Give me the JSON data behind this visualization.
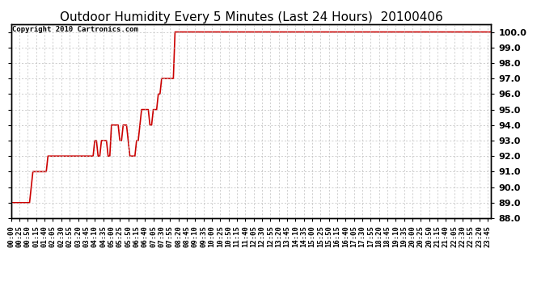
{
  "title": "Outdoor Humidity Every 5 Minutes (Last 24 Hours)  20100406",
  "copyright_text": "Copyright 2010 Cartronics.com",
  "line_color": "#cc0000",
  "background_color": "#ffffff",
  "plot_background_color": "#ffffff",
  "ylim": [
    88.0,
    100.5
  ],
  "yticks": [
    88.0,
    89.0,
    90.0,
    91.0,
    92.0,
    93.0,
    94.0,
    95.0,
    96.0,
    97.0,
    98.0,
    99.0,
    100.0
  ],
  "grid_color": "#bbbbbb",
  "grid_style": "--",
  "title_fontsize": 11,
  "copyright_fontsize": 6.5,
  "tick_fontsize": 6.5,
  "ytick_fontsize": 8,
  "humidity_data": [
    89.0,
    89.0,
    89.0,
    89.0,
    89.0,
    89.0,
    89.0,
    89.0,
    89.0,
    89.0,
    89.0,
    89.0,
    90.0,
    91.0,
    91.0,
    91.0,
    91.0,
    91.0,
    91.0,
    91.0,
    91.0,
    91.0,
    92.0,
    92.0,
    92.0,
    92.0,
    92.0,
    92.0,
    92.0,
    92.0,
    92.0,
    92.0,
    92.0,
    92.0,
    92.0,
    92.0,
    92.0,
    92.0,
    92.0,
    92.0,
    92.0,
    92.0,
    92.0,
    92.0,
    92.0,
    92.0,
    92.0,
    92.0,
    92.0,
    92.0,
    93.0,
    93.0,
    92.0,
    92.0,
    93.0,
    93.0,
    93.0,
    93.0,
    92.0,
    92.0,
    94.0,
    94.0,
    94.0,
    94.0,
    94.0,
    93.0,
    93.0,
    94.0,
    94.0,
    94.0,
    93.0,
    92.0,
    92.0,
    92.0,
    92.0,
    93.0,
    93.0,
    94.0,
    95.0,
    95.0,
    95.0,
    95.0,
    95.0,
    94.0,
    94.0,
    95.0,
    95.0,
    95.0,
    96.0,
    96.0,
    97.0,
    97.0,
    97.0,
    97.0,
    97.0,
    97.0,
    97.0,
    97.0,
    100.0,
    100.0,
    100.0,
    100.0,
    100.0,
    100.0,
    100.0,
    100.0,
    100.0,
    100.0,
    100.0,
    100.0,
    100.0,
    100.0,
    100.0,
    100.0,
    100.0,
    100.0,
    100.0,
    100.0,
    100.0,
    100.0,
    100.0,
    100.0,
    100.0,
    100.0,
    100.0,
    100.0,
    100.0,
    100.0,
    100.0,
    100.0,
    100.0,
    100.0,
    100.0,
    100.0,
    100.0,
    100.0,
    100.0,
    100.0,
    100.0,
    100.0,
    100.0,
    100.0,
    100.0,
    100.0,
    100.0,
    100.0,
    100.0,
    100.0,
    100.0,
    100.0,
    100.0,
    100.0,
    100.0,
    100.0,
    100.0,
    100.0,
    100.0,
    100.0,
    100.0,
    100.0,
    100.0,
    100.0,
    100.0,
    100.0,
    100.0,
    100.0,
    100.0,
    100.0,
    100.0,
    100.0,
    100.0,
    100.0,
    100.0,
    100.0,
    100.0,
    100.0,
    100.0,
    100.0,
    100.0,
    100.0,
    100.0,
    100.0,
    100.0,
    100.0,
    100.0,
    100.0,
    100.0,
    100.0,
    100.0,
    100.0,
    100.0,
    100.0,
    100.0,
    100.0,
    100.0,
    100.0,
    100.0,
    100.0,
    100.0,
    100.0,
    100.0,
    100.0,
    100.0,
    100.0,
    100.0,
    100.0,
    100.0,
    100.0,
    100.0,
    100.0,
    100.0,
    100.0,
    100.0,
    100.0,
    100.0,
    100.0,
    100.0,
    100.0,
    100.0,
    100.0,
    100.0,
    100.0,
    100.0,
    100.0,
    100.0,
    100.0,
    100.0,
    100.0,
    100.0,
    100.0,
    100.0,
    100.0,
    100.0,
    100.0,
    100.0,
    100.0,
    100.0,
    100.0,
    100.0,
    100.0,
    100.0,
    100.0,
    100.0,
    100.0,
    100.0,
    100.0,
    100.0,
    100.0,
    100.0,
    100.0,
    100.0,
    100.0,
    100.0,
    100.0,
    100.0,
    100.0,
    100.0,
    100.0,
    100.0,
    100.0,
    100.0,
    100.0,
    100.0,
    100.0,
    100.0,
    100.0,
    100.0,
    100.0,
    100.0,
    100.0,
    100.0,
    100.0,
    100.0,
    100.0,
    100.0,
    100.0,
    100.0,
    100.0,
    100.0,
    100.0,
    100.0,
    100.0,
    100.0,
    100.0,
    100.0,
    100.0,
    100.0,
    100.0,
    100.0,
    100.0
  ]
}
